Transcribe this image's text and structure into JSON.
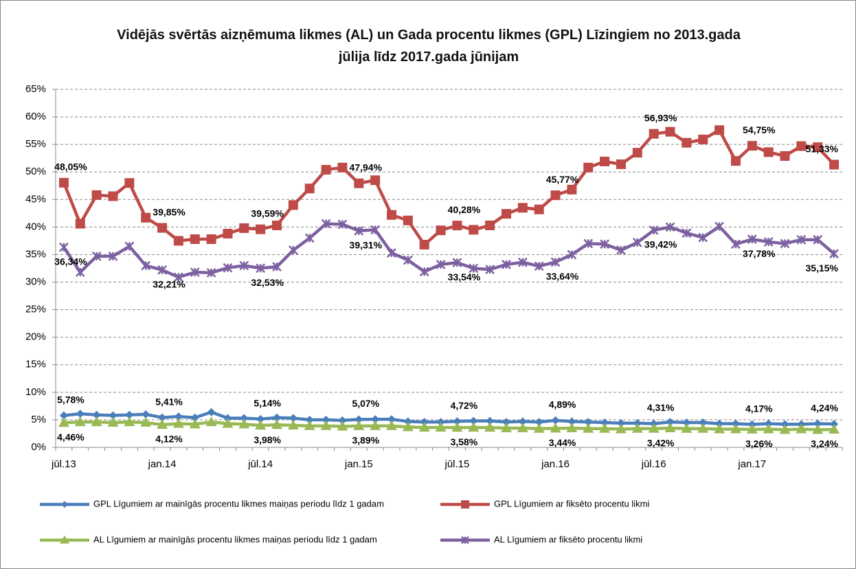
{
  "chart_data": {
    "type": "line",
    "title": "Vidējās svērtās aizņēmuma likmes (AL) un Gada procentu likmes (GPL) Līzingiem no 2013.gada jūlija līdz 2017.gada jūnijam",
    "categories": [
      "jūl.13",
      null,
      null,
      null,
      null,
      null,
      "jan.14",
      null,
      null,
      null,
      null,
      null,
      "jūl.14",
      null,
      null,
      null,
      null,
      null,
      "jan.15",
      null,
      null,
      null,
      null,
      null,
      "jūl.15",
      null,
      null,
      null,
      null,
      null,
      "jan.16",
      null,
      null,
      null,
      null,
      null,
      "jūl.16",
      null,
      null,
      null,
      null,
      null,
      "jan.17",
      null,
      null,
      null,
      null,
      null
    ],
    "ylim": [
      0,
      65
    ],
    "yticks": [
      {
        "value": 0,
        "label": "0%"
      },
      {
        "value": 5,
        "label": "5%"
      },
      {
        "value": 10,
        "label": "10%"
      },
      {
        "value": 15,
        "label": "15%"
      },
      {
        "value": 20,
        "label": "20%"
      },
      {
        "value": 25,
        "label": "25%"
      },
      {
        "value": 30,
        "label": "30%"
      },
      {
        "value": 35,
        "label": "35%"
      },
      {
        "value": 40,
        "label": "40%"
      },
      {
        "value": 45,
        "label": "45%"
      },
      {
        "value": 50,
        "label": "50%"
      },
      {
        "value": 55,
        "label": "55%"
      },
      {
        "value": 60,
        "label": "60%"
      },
      {
        "value": 65,
        "label": "65%"
      }
    ],
    "grid": true,
    "series": [
      {
        "name": "GPL Līgumiem ar mainīgās procentu likmes maiņas periodu līdz 1 gadam",
        "color": "#4a7ebb",
        "marker": "diamond",
        "label_side": "above",
        "values": [
          5.78,
          6.1,
          5.9,
          5.8,
          5.9,
          6.0,
          5.41,
          5.6,
          5.4,
          6.4,
          5.3,
          5.3,
          5.14,
          5.4,
          5.3,
          5.0,
          5.0,
          4.9,
          5.07,
          5.1,
          5.1,
          4.7,
          4.6,
          4.6,
          4.72,
          4.8,
          4.8,
          4.6,
          4.7,
          4.6,
          4.89,
          4.7,
          4.6,
          4.5,
          4.4,
          4.4,
          4.31,
          4.6,
          4.5,
          4.5,
          4.3,
          4.3,
          4.17,
          4.3,
          4.2,
          4.2,
          4.3,
          4.24
        ],
        "value_labels": [
          "5,78%",
          null,
          null,
          null,
          null,
          null,
          "5,41%",
          null,
          null,
          null,
          null,
          null,
          "5,14%",
          null,
          null,
          null,
          null,
          null,
          "5,07%",
          null,
          null,
          null,
          null,
          null,
          "4,72%",
          null,
          null,
          null,
          null,
          null,
          "4,89%",
          null,
          null,
          null,
          null,
          null,
          "4,31%",
          null,
          null,
          null,
          null,
          null,
          "4,17%",
          null,
          null,
          null,
          null,
          "4,24%"
        ]
      },
      {
        "name": "GPL Līgumiem ar fiksēto procentu likmi",
        "color": "#be4b48",
        "marker": "square",
        "label_side": "above",
        "values": [
          48.05,
          40.6,
          45.8,
          45.6,
          48.0,
          41.7,
          39.85,
          37.5,
          37.8,
          37.8,
          38.8,
          39.8,
          39.59,
          40.3,
          44.0,
          47.0,
          50.4,
          50.8,
          47.94,
          48.5,
          42.2,
          41.2,
          36.8,
          39.4,
          40.28,
          39.5,
          40.3,
          42.4,
          43.5,
          43.2,
          45.77,
          46.8,
          50.8,
          51.9,
          51.4,
          53.5,
          56.93,
          57.3,
          55.3,
          55.9,
          57.6,
          52.0,
          54.75,
          53.6,
          52.9,
          54.7,
          54.5,
          51.33
        ],
        "value_labels": [
          "48,05%",
          null,
          null,
          null,
          null,
          null,
          "39,85%",
          null,
          null,
          null,
          null,
          null,
          "39,59%",
          null,
          null,
          null,
          null,
          null,
          "47,94%",
          null,
          null,
          null,
          null,
          null,
          "40,28%",
          null,
          null,
          null,
          null,
          null,
          "45,77%",
          null,
          null,
          null,
          null,
          null,
          "56,93%",
          null,
          null,
          null,
          null,
          null,
          "54,75%",
          null,
          null,
          null,
          null,
          "51,33%"
        ]
      },
      {
        "name": "AL Līgumiem ar mainīgās procentu likmes maiņas periodu līdz 1 gadam",
        "color": "#98b954",
        "marker": "triangle",
        "label_side": "below",
        "values": [
          4.46,
          4.6,
          4.6,
          4.5,
          4.6,
          4.5,
          4.12,
          4.3,
          4.2,
          4.6,
          4.3,
          4.2,
          3.98,
          4.1,
          4.0,
          3.9,
          3.9,
          3.8,
          3.89,
          3.9,
          3.9,
          3.7,
          3.6,
          3.6,
          3.58,
          3.6,
          3.6,
          3.5,
          3.5,
          3.4,
          3.44,
          3.5,
          3.4,
          3.4,
          3.3,
          3.4,
          3.42,
          3.5,
          3.4,
          3.4,
          3.3,
          3.3,
          3.26,
          3.3,
          3.2,
          3.3,
          3.2,
          3.24
        ],
        "value_labels": [
          "4,46%",
          null,
          null,
          null,
          null,
          null,
          "4,12%",
          null,
          null,
          null,
          null,
          null,
          "3,98%",
          null,
          null,
          null,
          null,
          null,
          "3,89%",
          null,
          null,
          null,
          null,
          null,
          "3,58%",
          null,
          null,
          null,
          null,
          null,
          "3,44%",
          null,
          null,
          null,
          null,
          null,
          "3,42%",
          null,
          null,
          null,
          null,
          null,
          "3,26%",
          null,
          null,
          null,
          null,
          "3,24%"
        ]
      },
      {
        "name": "AL Līgumiem ar fiksēto procentu likmi",
        "color": "#7d60a0",
        "marker": "star",
        "label_side": "below",
        "values": [
          36.34,
          31.8,
          34.7,
          34.7,
          36.5,
          33.0,
          32.21,
          30.9,
          31.8,
          31.7,
          32.6,
          33.0,
          32.53,
          32.8,
          35.8,
          38.0,
          40.6,
          40.5,
          39.31,
          39.5,
          35.3,
          34.0,
          31.9,
          33.2,
          33.54,
          32.5,
          32.3,
          33.2,
          33.6,
          32.9,
          33.64,
          35.0,
          37.0,
          36.9,
          35.8,
          37.2,
          39.42,
          40.0,
          38.9,
          38.1,
          40.1,
          36.9,
          37.78,
          37.3,
          37.0,
          37.7,
          37.7,
          35.15
        ],
        "value_labels": [
          "36,34%",
          null,
          null,
          null,
          null,
          null,
          "32,21%",
          null,
          null,
          null,
          null,
          null,
          "32,53%",
          null,
          null,
          null,
          null,
          null,
          "39,31%",
          null,
          null,
          null,
          null,
          null,
          "33,54%",
          null,
          null,
          null,
          null,
          null,
          "33,64%",
          null,
          null,
          null,
          null,
          null,
          "39,42%",
          null,
          null,
          null,
          null,
          null,
          "37,78%",
          null,
          null,
          null,
          null,
          "35,15%"
        ]
      }
    ]
  }
}
